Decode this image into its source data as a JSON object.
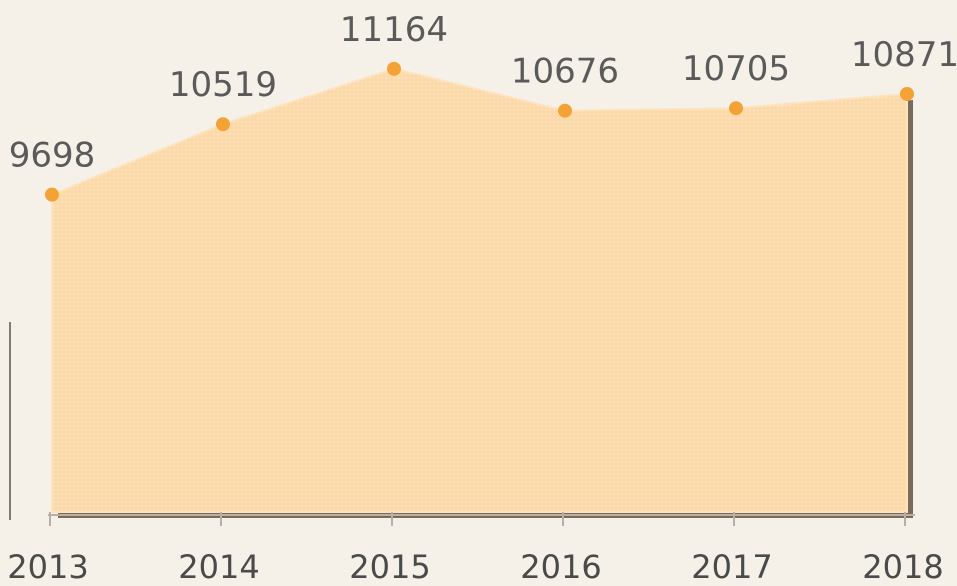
{
  "chart_data": {
    "type": "area",
    "categories": [
      "2013",
      "2014",
      "2015",
      "2016",
      "2017",
      "2018"
    ],
    "values": [
      9698,
      10519,
      11164,
      10676,
      10705,
      10871
    ],
    "color": "#f4a236",
    "fill": "#fcd7a4",
    "ylim": [
      6000,
      11500
    ]
  }
}
